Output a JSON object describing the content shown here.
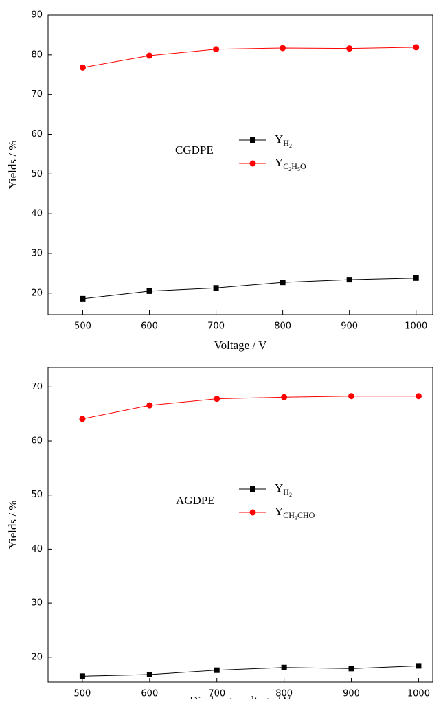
{
  "chart_data": [
    {
      "type": "line",
      "annotation": "CGDPE",
      "xlabel": "Voltage / V",
      "ylabel": "Yields / %",
      "x": [
        500,
        600,
        700,
        800,
        900,
        1000
      ],
      "series": [
        {
          "name": "YH2",
          "color": "#000000",
          "marker": "square",
          "values": [
            18.6,
            20.5,
            21.3,
            22.7,
            23.4,
            23.8
          ]
        },
        {
          "name": "YC2H5O",
          "color": "#ff0000",
          "marker": "circle",
          "values": [
            76.8,
            79.8,
            81.4,
            81.7,
            81.6,
            81.9
          ]
        }
      ],
      "xlim": [
        448,
        1025
      ],
      "xticks": [
        500,
        600,
        700,
        800,
        900,
        1000
      ],
      "ylim": [
        14.6,
        90
      ],
      "yticks": [
        20,
        30,
        40,
        50,
        60,
        70,
        80,
        90
      ]
    },
    {
      "type": "line",
      "annotation": "AGDPE",
      "xlabel": "Discharge voltage / V",
      "ylabel": "Yields / %",
      "x": [
        500,
        600,
        700,
        800,
        900,
        1000
      ],
      "series": [
        {
          "name": "YH2",
          "color": "#000000",
          "marker": "square",
          "values": [
            16.5,
            16.8,
            17.6,
            18.1,
            17.9,
            18.4
          ]
        },
        {
          "name": "YCH3CHO",
          "color": "#ff0000",
          "marker": "circle",
          "values": [
            64.1,
            66.6,
            67.8,
            68.1,
            68.3,
            68.3
          ]
        }
      ],
      "xlim": [
        449,
        1021
      ],
      "xticks": [
        500,
        600,
        700,
        800,
        900,
        1000
      ],
      "ylim": [
        15.4,
        73.6
      ],
      "yticks": [
        20,
        30,
        40,
        50,
        60,
        70
      ]
    }
  ]
}
